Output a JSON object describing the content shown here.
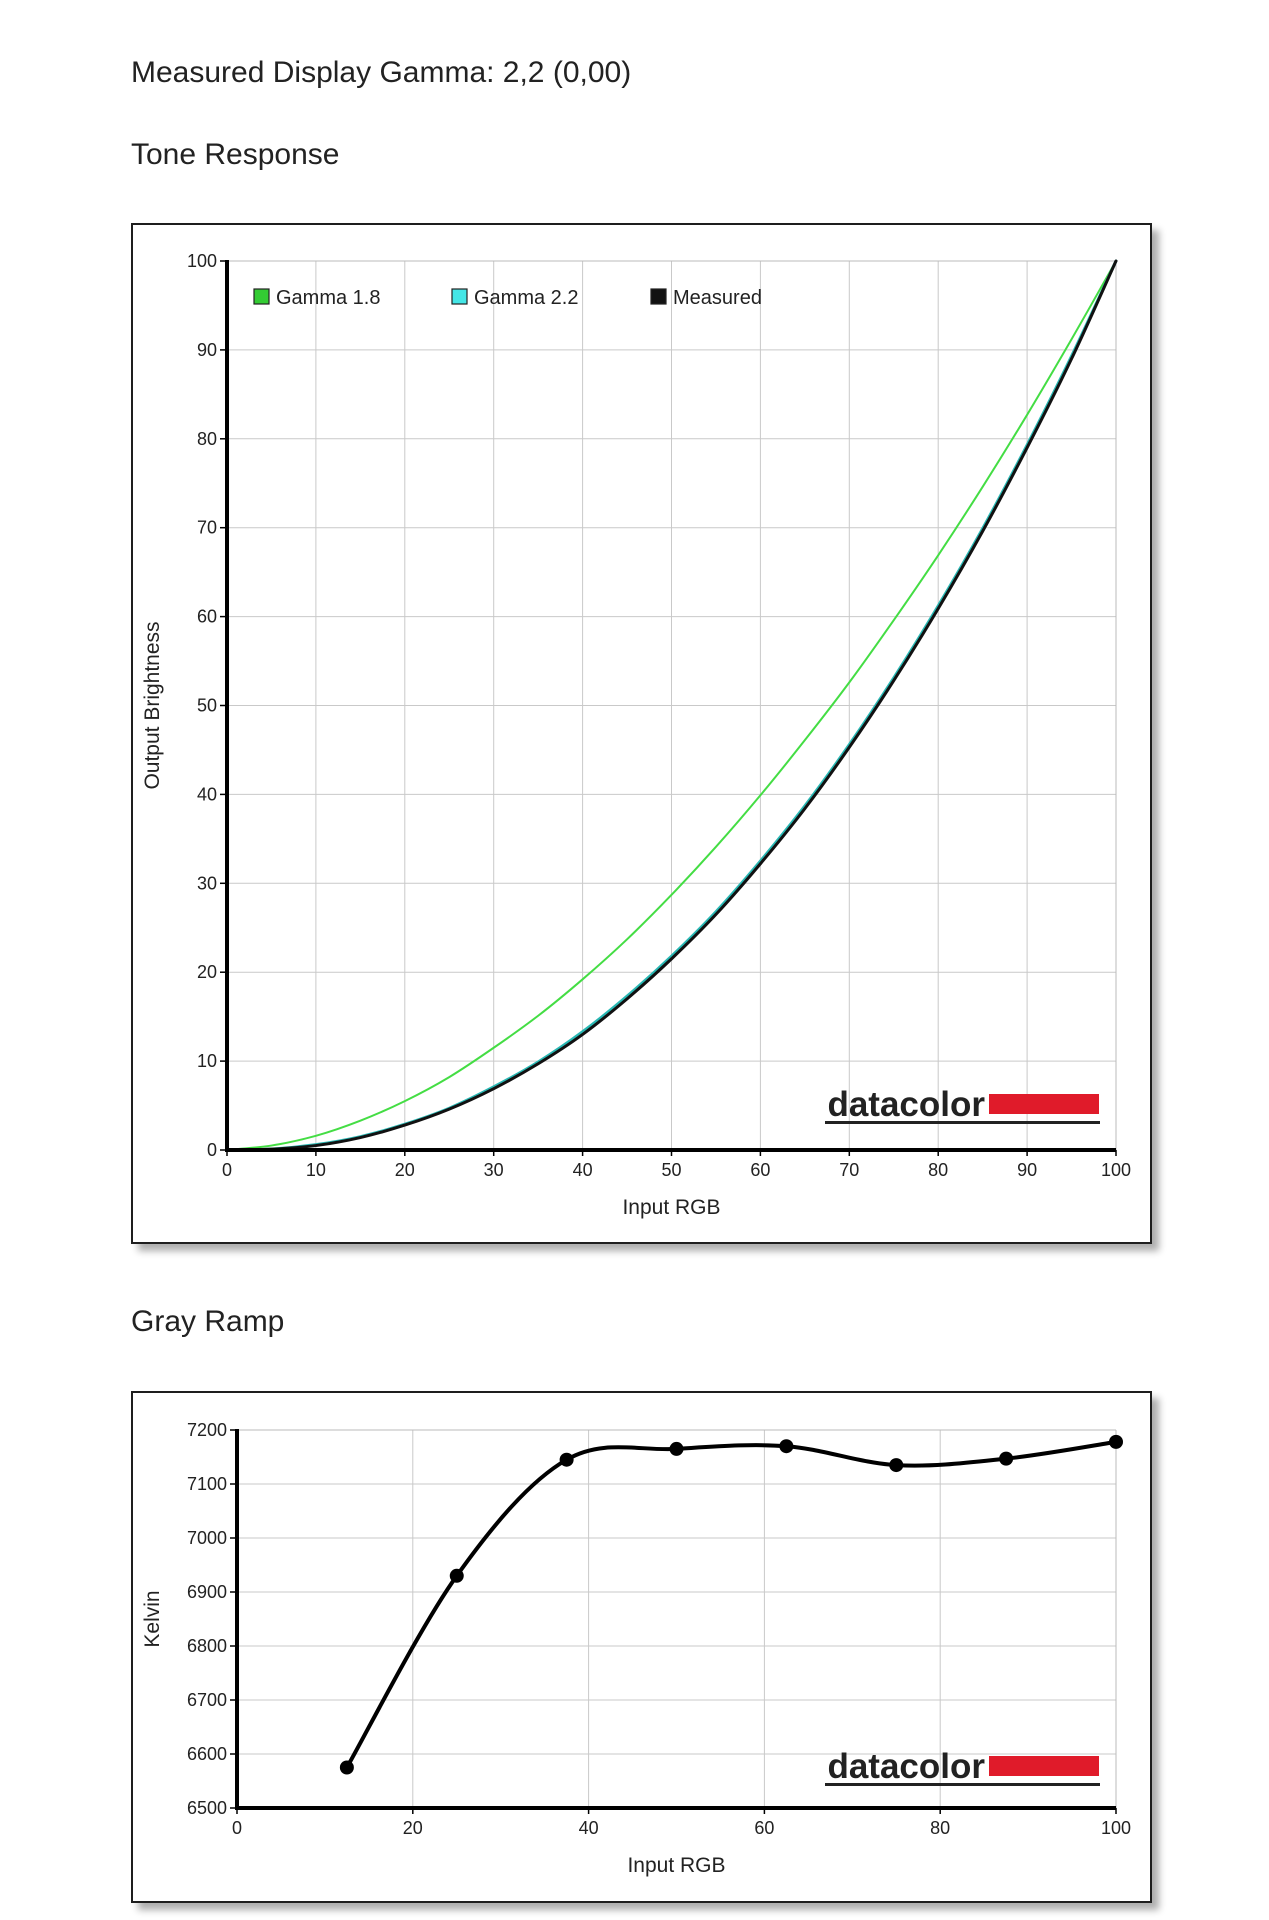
{
  "headings": {
    "measured_gamma": "Measured Display Gamma: 2,2 (0,00)",
    "tone_response": "Tone Response",
    "gray_ramp": "Gray Ramp"
  },
  "brand": {
    "wordmark": "datacolor",
    "accent": "#e01b2a"
  },
  "chart_data": [
    {
      "type": "line",
      "title": "Tone Response",
      "xlabel": "Input RGB",
      "ylabel": "Output Brightness",
      "xlim": [
        0,
        100
      ],
      "ylim": [
        0,
        100
      ],
      "xticks": [
        "0",
        "10",
        "20",
        "30",
        "40",
        "50",
        "60",
        "70",
        "80",
        "90",
        "100"
      ],
      "yticks": [
        "0",
        "10",
        "20",
        "30",
        "40",
        "50",
        "60",
        "70",
        "80",
        "90",
        "100"
      ],
      "grid": true,
      "legend_position": "top-left",
      "series": [
        {
          "name": "Gamma 1.8",
          "color": "#44dd44",
          "swatch": "#33cc33",
          "x": [
            0,
            5,
            10,
            15,
            20,
            25,
            30,
            35,
            40,
            45,
            50,
            55,
            60,
            65,
            70,
            75,
            80,
            85,
            90,
            95,
            100
          ],
          "y": [
            0,
            0.5,
            1.6,
            3.3,
            5.5,
            8.2,
            11.5,
            15.1,
            19.2,
            23.7,
            28.7,
            34.1,
            39.9,
            46.1,
            52.6,
            59.6,
            66.9,
            74.6,
            82.7,
            91.2,
            100
          ]
        },
        {
          "name": "Gamma 2.2",
          "color": "#2ab8b4",
          "swatch": "#44e6e6",
          "x": [
            0,
            5,
            10,
            15,
            20,
            25,
            30,
            35,
            40,
            45,
            50,
            55,
            60,
            65,
            70,
            75,
            80,
            85,
            90,
            95,
            100
          ],
          "y": [
            0,
            0.1,
            0.6,
            1.5,
            2.9,
            4.7,
            7.1,
            9.9,
            13.3,
            17.3,
            21.8,
            26.8,
            32.5,
            38.7,
            45.6,
            53.1,
            61.2,
            69.9,
            79.3,
            89.3,
            100
          ]
        },
        {
          "name": "Measured",
          "color": "#111111",
          "swatch": "#111111",
          "x": [
            0,
            5,
            10,
            15,
            20,
            25,
            30,
            35,
            40,
            45,
            50,
            55,
            60,
            65,
            70,
            75,
            80,
            85,
            90,
            95,
            100
          ],
          "y": [
            0,
            0.1,
            0.5,
            1.4,
            2.8,
            4.6,
            6.9,
            9.7,
            13.0,
            17.0,
            21.5,
            26.5,
            32.2,
            38.4,
            45.3,
            52.8,
            60.9,
            69.6,
            79.0,
            89.0,
            100
          ]
        }
      ]
    },
    {
      "type": "line",
      "title": "Gray Ramp",
      "xlabel": "Input RGB",
      "ylabel": "Kelvin",
      "xlim": [
        0,
        100
      ],
      "ylim": [
        6500,
        7200
      ],
      "xticks": [
        "0",
        "20",
        "40",
        "60",
        "80",
        "100"
      ],
      "yticks": [
        "6500",
        "6600",
        "6700",
        "6800",
        "6900",
        "7000",
        "7100",
        "7200"
      ],
      "grid": true,
      "series": [
        {
          "color": "#000000",
          "x": [
            12.5,
            25,
            37.5,
            50,
            62.5,
            75,
            87.5,
            100
          ],
          "y": [
            6575,
            6930,
            7145,
            7165,
            7170,
            7135,
            7147,
            7178
          ]
        }
      ]
    }
  ]
}
